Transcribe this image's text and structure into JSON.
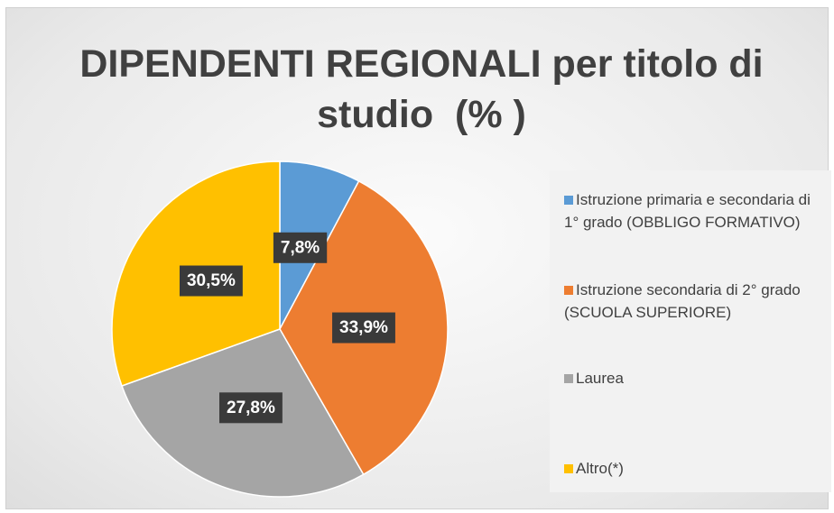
{
  "chart_data": {
    "type": "pie",
    "title": "DIPENDENTI REGIONALI per titolo di studio  (% )",
    "categories": [
      "Istruzione primaria e secondaria di 1° grado (OBBLIGO FORMATIVO)",
      "Istruzione secondaria di 2° grado (SCUOLA SUPERIORE)",
      "Laurea",
      "Altro(*)"
    ],
    "values": [
      7.8,
      33.9,
      27.8,
      30.5
    ],
    "value_labels": [
      "7,8%",
      "33,9%",
      "27,8%",
      "30,5%"
    ],
    "colors": [
      "#5b9bd5",
      "#ed7d31",
      "#a5a5a5",
      "#ffc000"
    ],
    "legend": "right"
  }
}
